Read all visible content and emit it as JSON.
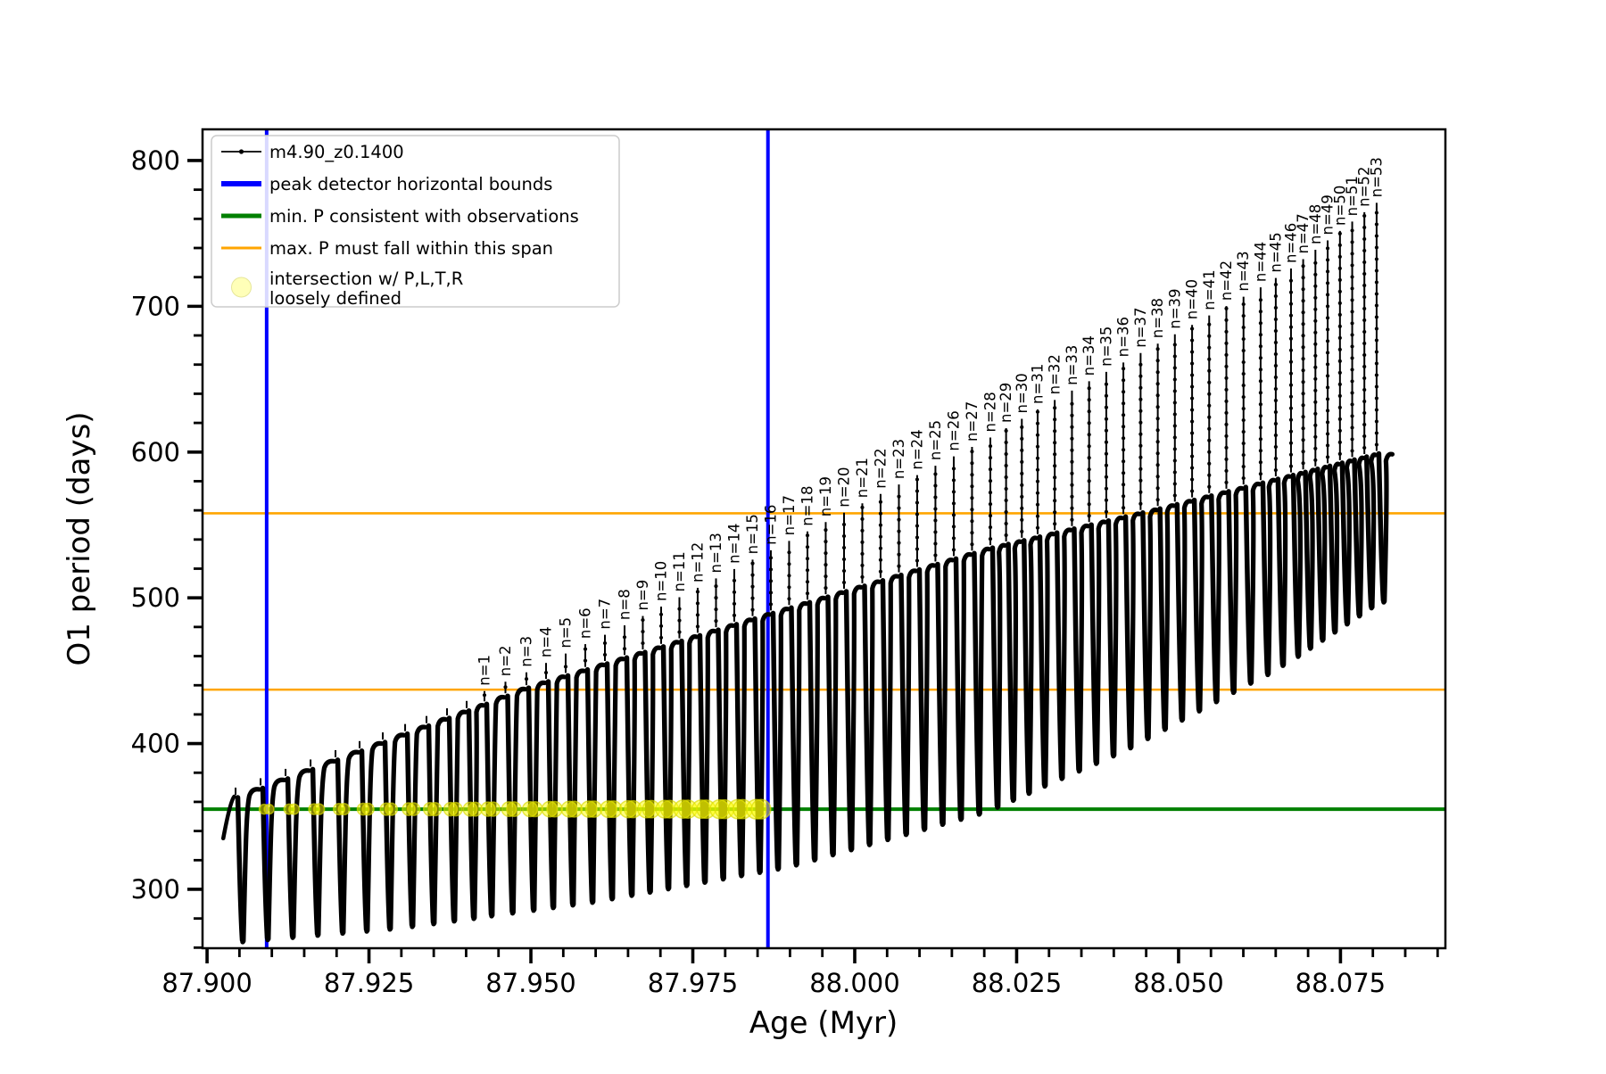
{
  "figure": {
    "background": "#ffffff",
    "axes": {
      "xlabel": "Age (Myr)",
      "ylabel": "O1 period (days)",
      "x_range": [
        87.8993,
        88.0912
      ],
      "y_range": [
        259.6,
        821.4
      ],
      "x_major_ticks": [
        87.9,
        87.925,
        87.95,
        87.975,
        88.0,
        88.025,
        88.05,
        88.075
      ],
      "x_tick_labels": [
        "87.900",
        "87.925",
        "87.950",
        "87.975",
        "88.000",
        "88.025",
        "88.050",
        "88.075"
      ],
      "x_minor_step": 0.005,
      "y_major_ticks": [
        300,
        400,
        500,
        600,
        700,
        800
      ],
      "y_tick_labels": [
        "300",
        "400",
        "500",
        "600",
        "700",
        "800"
      ],
      "y_minor_step": 20
    },
    "legend": {
      "entries": [
        {
          "label": "m4.90_z0.1400",
          "type": "line-dot",
          "color": "#000000"
        },
        {
          "label": "peak detector horizontal bounds",
          "type": "line",
          "color": "#0000ff"
        },
        {
          "label": "min. P consistent with observations",
          "type": "line",
          "color": "#008000"
        },
        {
          "label": "max. P must fall within this span",
          "type": "line",
          "color": "#ffa500"
        },
        {
          "label": "intersection w/ P,L,T,R",
          "label2": "loosely defined",
          "type": "dot",
          "color": "#ffff00"
        }
      ]
    }
  },
  "chart_data": {
    "type": "line",
    "series_name": "m4.90_z0.1400",
    "title": "",
    "xlabel": "Age (Myr)",
    "ylabel": "O1 period (days)",
    "x_range": [
      87.8993,
      88.0912
    ],
    "y_range": [
      259.6,
      821.4
    ],
    "blue_vlines": [
      87.9092,
      87.9866
    ],
    "green_hline": 355,
    "orange_hlines": [
      437,
      558
    ],
    "colors": {
      "series": "#000000",
      "bounds": "#0000ff",
      "min_p": "#008000",
      "max_p": "#ffa500",
      "intersection": "#ffff00"
    },
    "peak_label_prefix": "n=",
    "peak_labels": [
      "n=1",
      "n=2",
      "n=3",
      "n=4",
      "n=5",
      "n=6",
      "n=7",
      "n=8",
      "n=9",
      "n=10",
      "n=11",
      "n=12",
      "n=13",
      "n=14",
      "n=15",
      "n=16",
      "n=17",
      "n=18",
      "n=19",
      "n=20",
      "n=21",
      "n=22",
      "n=23",
      "n=24",
      "n=25",
      "n=26",
      "n=27",
      "n=28",
      "n=29",
      "n=30",
      "n=31",
      "n=32",
      "n=33",
      "n=34",
      "n=35",
      "n=36",
      "n=37",
      "n=38",
      "n=39",
      "n=40",
      "n=41",
      "n=42",
      "n=43",
      "n=44",
      "n=45",
      "n=46",
      "n=47",
      "n=48",
      "n=49",
      "n=50",
      "n=51",
      "n=52",
      "n=53"
    ],
    "labeled_peak_ages": [
      87.94283,
      87.94607,
      87.94931,
      87.95234,
      87.95537,
      87.9584,
      87.96143,
      87.96446,
      87.96728,
      87.97011,
      87.97293,
      87.97575,
      87.97858,
      87.9814,
      87.98423,
      87.98705,
      87.98987,
      87.9927,
      87.99552,
      87.99835,
      88.00117,
      88.00399,
      88.00682,
      88.00964,
      88.01246,
      88.01529,
      88.01811,
      88.02094,
      88.02337,
      88.0258,
      88.02824,
      88.03088,
      88.03354,
      88.03619,
      88.03884,
      88.04148,
      88.04414,
      88.04679,
      88.04943,
      88.05209,
      88.05473,
      88.05738,
      88.06003,
      88.06267,
      88.06501,
      88.06736,
      88.06924,
      88.07113,
      88.07302,
      88.07492,
      88.07681,
      88.07869,
      88.08058
    ],
    "unlabeled_peak_ages": [
      87.9044,
      87.90826,
      87.91212,
      87.91598,
      87.91983,
      87.92355,
      87.92713,
      87.93058,
      87.93388,
      87.93705,
      87.94008
    ],
    "curve_start_age": 87.9025,
    "curve_end_age": 88.0832,
    "spike_top_days": {
      "first": 436,
      "last": 771
    },
    "hump_top_anchors": [
      [
        87.904,
        363
      ],
      [
        87.943,
        428
      ],
      [
        87.95,
        440
      ],
      [
        87.987,
        490
      ],
      [
        88.021,
        535
      ],
      [
        88.047,
        562
      ],
      [
        88.081,
        600
      ]
    ],
    "trough_bottom_anchors": [
      [
        87.904,
        263
      ],
      [
        87.93,
        273
      ],
      [
        87.96,
        291
      ],
      [
        87.99,
        315
      ],
      [
        88.02,
        352
      ],
      [
        88.042,
        395
      ],
      [
        88.065,
        450
      ],
      [
        88.081,
        497
      ]
    ],
    "intersection_markers": {
      "y": 355,
      "between_x": [
        87.9092,
        87.9866
      ],
      "color": "#ffff00"
    }
  }
}
